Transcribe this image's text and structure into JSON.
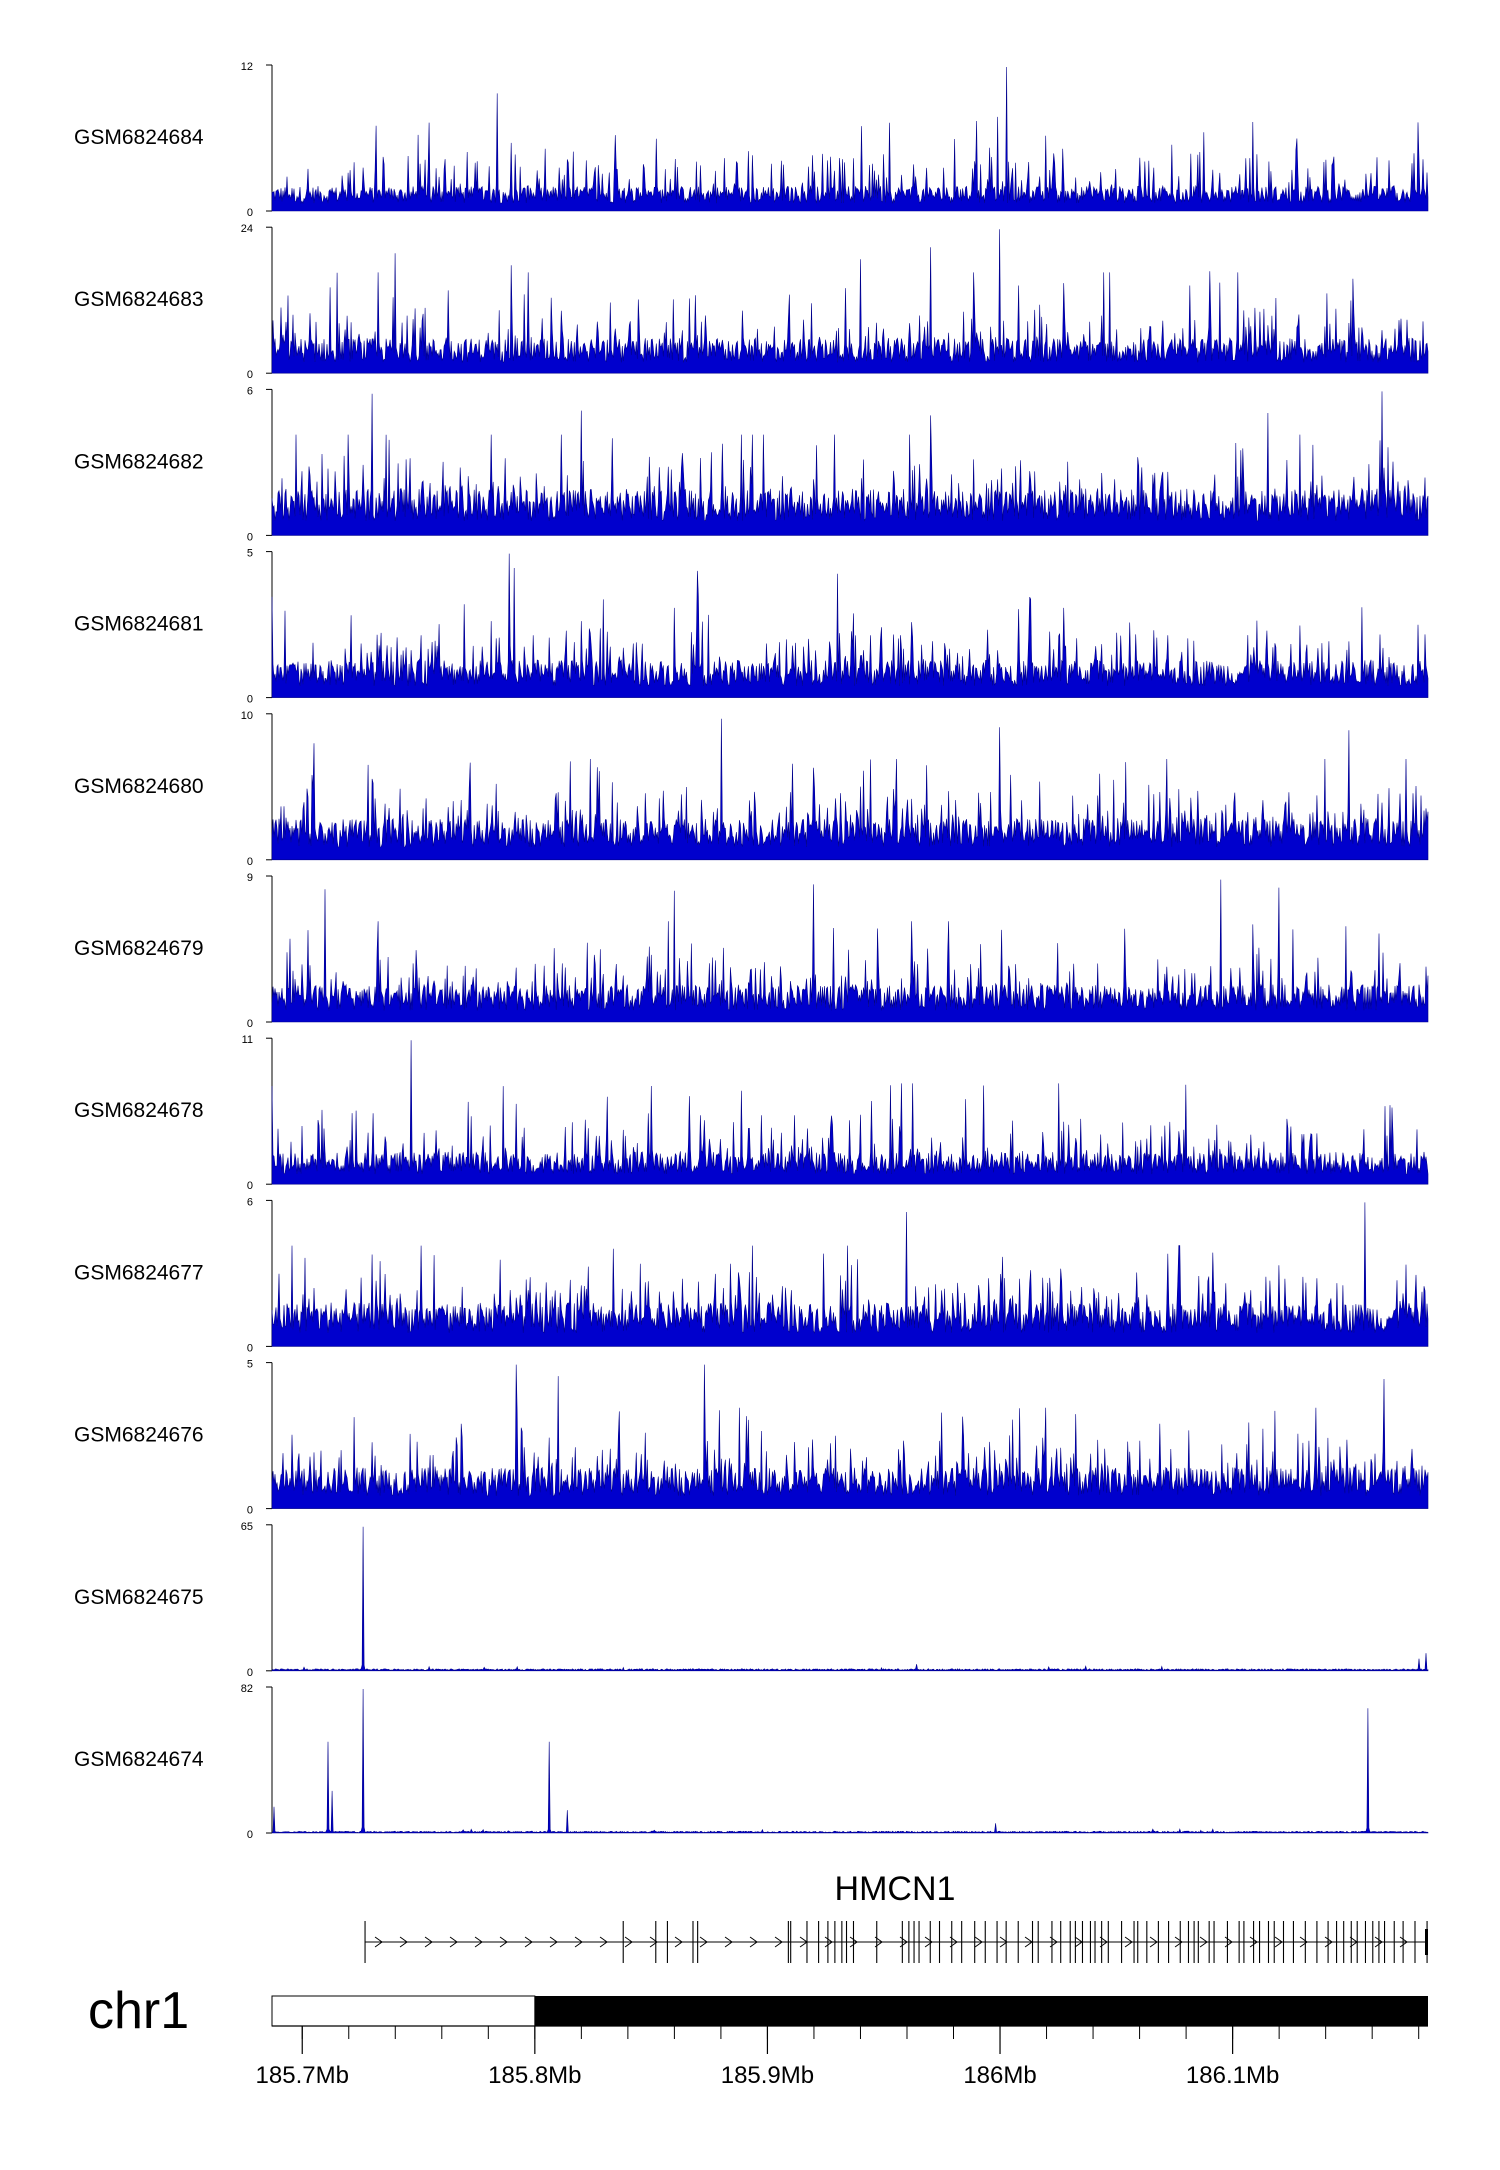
{
  "chart_data": {
    "type": "area",
    "chromosome": "chr1",
    "gene": "HMCN1",
    "x_unit": "Mb",
    "xlim": [
      185.687,
      186.184
    ],
    "x_ticks": [
      {
        "value": 185.7,
        "label": "185.7Mb"
      },
      {
        "value": 185.8,
        "label": "185.8Mb"
      },
      {
        "value": 185.9,
        "label": "185.9Mb"
      },
      {
        "value": 186.0,
        "label": "186Mb"
      },
      {
        "value": 186.1,
        "label": "186.1Mb"
      }
    ],
    "ideogram_dark_start": 185.8,
    "gene_span": [
      185.727,
      186.184
    ],
    "gene_strand": "+",
    "exon_count": 107,
    "track_color": "#0000cd",
    "grid": false,
    "tracks": [
      {
        "name": "GSM6824684",
        "ymax": 12,
        "profile": "noise",
        "baseline": 1.6,
        "spikes": [
          [
            185.784,
            9.8
          ],
          [
            185.99,
            7.5
          ],
          [
            186.003,
            12
          ]
        ]
      },
      {
        "name": "GSM6824683",
        "ymax": 24,
        "profile": "noise",
        "baseline": 4.5,
        "spikes": [
          [
            185.74,
            20
          ],
          [
            185.79,
            18
          ],
          [
            185.94,
            19
          ],
          [
            185.97,
            21
          ],
          [
            186.0,
            24
          ],
          [
            186.09,
            17
          ]
        ]
      },
      {
        "name": "GSM6824682",
        "ymax": 6,
        "profile": "noise",
        "baseline": 1.5,
        "spikes": [
          [
            185.73,
            5.9
          ],
          [
            185.82,
            5.2
          ],
          [
            185.97,
            5.0
          ],
          [
            186.115,
            5.1
          ],
          [
            186.164,
            6.0
          ]
        ]
      },
      {
        "name": "GSM6824681",
        "ymax": 5,
        "profile": "noise",
        "baseline": 1.0,
        "spikes": [
          [
            185.789,
            5.0
          ],
          [
            185.791,
            4.5
          ],
          [
            185.87,
            4.4
          ],
          [
            185.93,
            4.3
          ]
        ]
      },
      {
        "name": "GSM6824680",
        "ymax": 10,
        "profile": "noise",
        "baseline": 2.2,
        "spikes": [
          [
            185.705,
            8.1
          ],
          [
            185.88,
            9.8
          ],
          [
            186.0,
            9.2
          ],
          [
            186.15,
            9.0
          ]
        ]
      },
      {
        "name": "GSM6824679",
        "ymax": 9,
        "profile": "noise",
        "baseline": 1.8,
        "spikes": [
          [
            185.71,
            8.3
          ],
          [
            185.86,
            8.2
          ],
          [
            185.92,
            8.6
          ],
          [
            186.095,
            8.9
          ],
          [
            186.12,
            8.4
          ]
        ]
      },
      {
        "name": "GSM6824678",
        "ymax": 11,
        "profile": "noise",
        "baseline": 1.9,
        "spikes": [
          [
            185.687,
            7.5
          ],
          [
            185.747,
            11
          ],
          [
            185.85,
            7.5
          ],
          [
            186.08,
            7.6
          ]
        ]
      },
      {
        "name": "GSM6824677",
        "ymax": 6,
        "profile": "noise",
        "baseline": 1.4,
        "spikes": [
          [
            185.96,
            5.6
          ],
          [
            186.157,
            6.0
          ]
        ]
      },
      {
        "name": "GSM6824676",
        "ymax": 5,
        "profile": "noise",
        "baseline": 1.1,
        "spikes": [
          [
            185.792,
            5.0
          ],
          [
            185.81,
            4.6
          ],
          [
            185.873,
            5.0
          ],
          [
            186.165,
            4.5
          ]
        ]
      },
      {
        "name": "GSM6824675",
        "ymax": 65,
        "profile": "peaks",
        "baseline": 0.7,
        "spikes": [
          [
            185.726,
            65
          ],
          [
            185.726,
            48
          ],
          [
            185.964,
            3.0
          ],
          [
            186.18,
            5.5
          ],
          [
            186.183,
            8.0
          ]
        ]
      },
      {
        "name": "GSM6824674",
        "ymax": 82,
        "profile": "peaks",
        "baseline": 0.8,
        "spikes": [
          [
            185.688,
            15
          ],
          [
            185.711,
            52
          ],
          [
            185.713,
            24
          ],
          [
            185.726,
            82
          ],
          [
            185.806,
            52
          ],
          [
            185.814,
            13
          ],
          [
            185.998,
            5.5
          ],
          [
            186.158,
            71
          ]
        ]
      }
    ]
  }
}
